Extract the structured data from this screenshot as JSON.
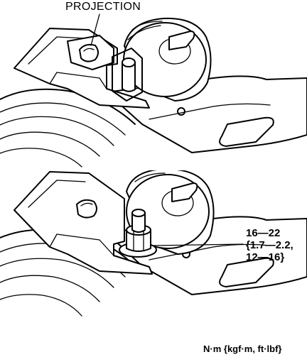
{
  "callouts": {
    "projection": "PROJECTION",
    "torque_line1": "16—22",
    "torque_line2": "{1.7—2.2,",
    "torque_line3": "12—16}",
    "units": "N·m {kgf·m, ft·lbf}"
  }
}
